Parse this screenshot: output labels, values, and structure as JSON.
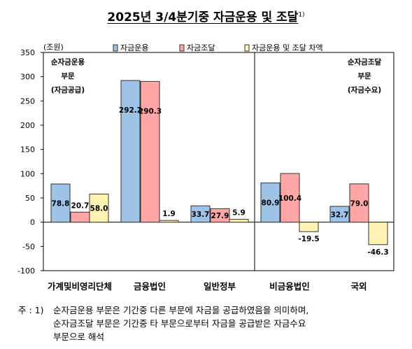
{
  "title": {
    "text": "2025년  3/4분기중  자금운용  및  조달",
    "sup": "1)"
  },
  "footnote": {
    "prefix": "주 : 1)",
    "lines": [
      "순자금운용 부문은 기간중 다른 부문에 자금을 공급하였음을 의미하며,",
      "순자금조달 부문은 기간중 타 부문으로부터 자금을 공급받은 자금수요",
      "부문으로 해석"
    ]
  },
  "annotations": {
    "left": [
      "순자금운용",
      "부문",
      "(자금공급)"
    ],
    "right": [
      "순자금조달",
      "부문",
      "(자금수요)"
    ]
  },
  "colors": {
    "series1_fill": "#9dc3e6",
    "series2_fill": "#ffa7a7",
    "series3_fill": "#fff2b2",
    "edge": "#333333"
  },
  "chart_data": {
    "type": "bar",
    "ylabel": "(조원)",
    "ylim": [
      -100,
      350
    ],
    "yticks": [
      -100,
      -50,
      0,
      50,
      100,
      150,
      200,
      250,
      300,
      350
    ],
    "categories": [
      "가계및비영리단체",
      "금융법인",
      "일반정부",
      "비금융법인",
      "국외"
    ],
    "series": [
      {
        "name": "자금운용",
        "values": [
          78.8,
          292.2,
          33.7,
          80.9,
          32.7
        ]
      },
      {
        "name": "자금조달",
        "values": [
          20.7,
          290.3,
          27.9,
          100.4,
          79.0
        ]
      },
      {
        "name": "자금운용 및 조달 차액",
        "values": [
          58.0,
          1.9,
          5.9,
          -19.5,
          -46.3
        ]
      }
    ],
    "grid": false,
    "legend": "top"
  }
}
